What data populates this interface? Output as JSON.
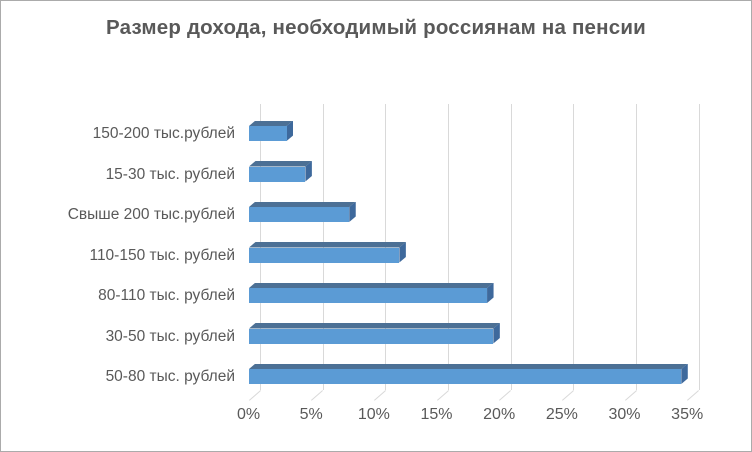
{
  "window": {
    "background": "#ffffff",
    "border_color": "#ababab"
  },
  "chart_data": {
    "type": "bar",
    "orientation": "horizontal",
    "style": "3d",
    "title": "Размер дохода, необходимый россиянам на пенсии",
    "categories": [
      "150-200 тыс.рублей",
      "15-30 тыс. рублей",
      "Свыше 200 тыс.рублей",
      "110-150 тыс. рублей",
      "80-110 тыс. рублей",
      "30-50 тыс. рублей",
      "50-80 тыс. рублей"
    ],
    "values": [
      3,
      4.5,
      8,
      12,
      19,
      19.5,
      34.5
    ],
    "unit": "%",
    "x_ticks": [
      "0%",
      "5%",
      "10%",
      "15%",
      "20%",
      "25%",
      "30%",
      "35%"
    ],
    "xlim": [
      0,
      35
    ],
    "grid": true,
    "legend": false,
    "colors": {
      "bar_front": "#5b9bd5",
      "bar_top": "#4c7095",
      "bar_side": "#3e699c",
      "gridline": "#d9d9d9",
      "text": "#595959"
    }
  }
}
